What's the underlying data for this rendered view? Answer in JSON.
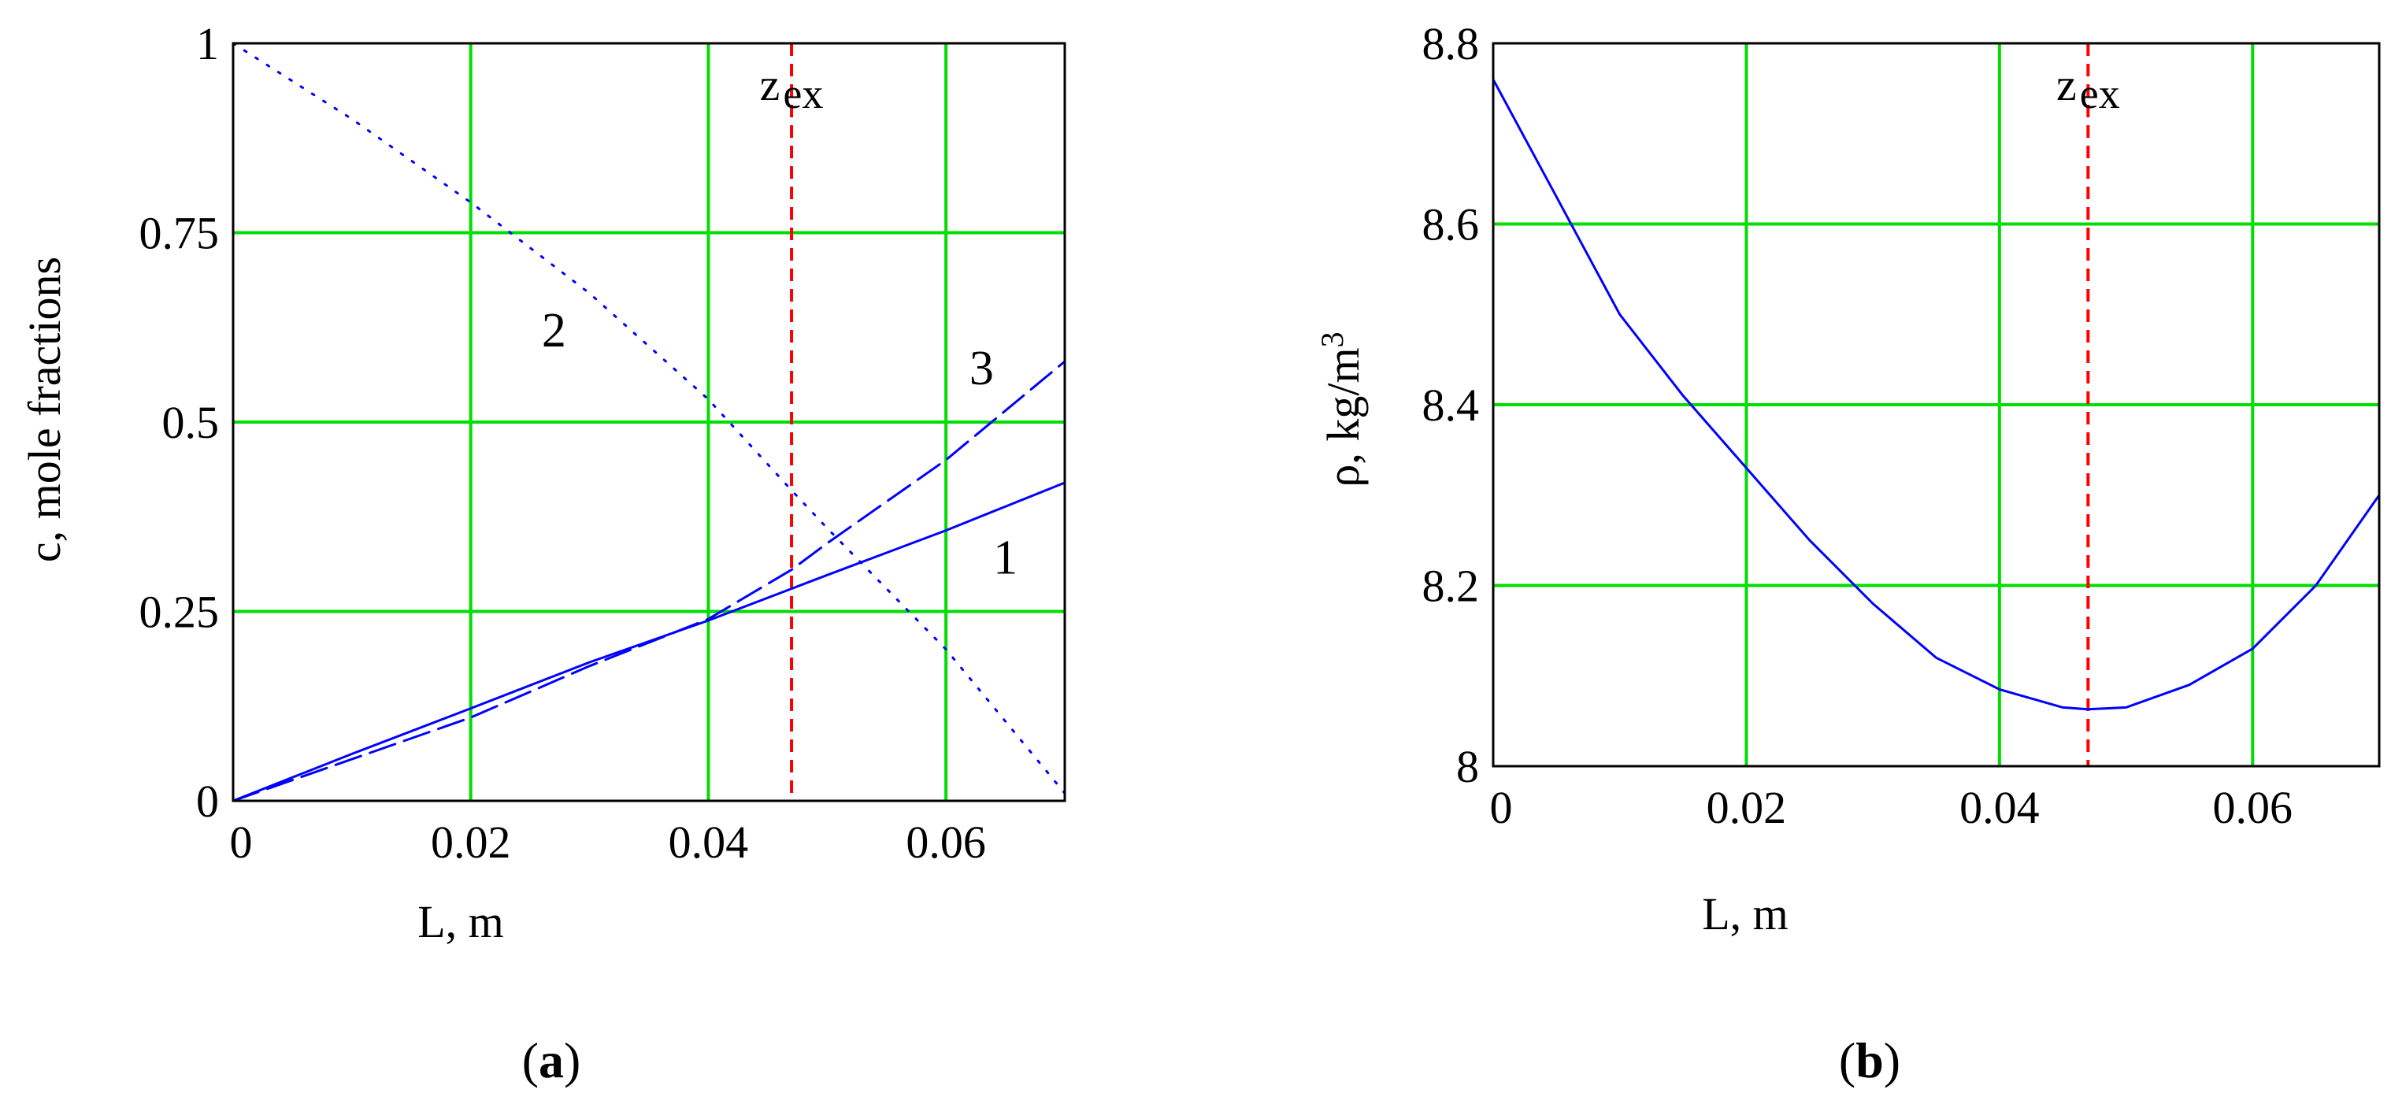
{
  "chart_data": [
    {
      "panel": "(a)",
      "panel_letter": "a",
      "type": "line",
      "xlabel": "L, m",
      "ylabel": "c, mole fractions",
      "xlim": [
        0,
        0.07
      ],
      "ylim": [
        0,
        1
      ],
      "xticks": [
        0,
        0.02,
        0.04,
        0.06
      ],
      "xtick_labels": [
        "0",
        "0.02",
        "0.04",
        "0.06"
      ],
      "yticks": [
        0,
        0.25,
        0.5,
        0.75,
        1
      ],
      "ytick_labels": [
        "0",
        "0.25",
        "0.5",
        "0.75",
        "1"
      ],
      "grid": true,
      "marker_line": {
        "x": 0.047,
        "label": "z",
        "sublabel": "ex",
        "color": "#ff0000"
      },
      "series": [
        {
          "name": "1",
          "style": "solid",
          "color": "#0000ff",
          "x": [
            0,
            0.01,
            0.02,
            0.03,
            0.04,
            0.047,
            0.05,
            0.06,
            0.07
          ],
          "y": [
            0,
            0.062,
            0.122,
            0.183,
            0.238,
            0.28,
            0.298,
            0.357,
            0.42
          ]
        },
        {
          "name": "2",
          "style": "dotted",
          "color": "#0000ff",
          "x": [
            0,
            0.01,
            0.02,
            0.03,
            0.04,
            0.047,
            0.05,
            0.06,
            0.07
          ],
          "y": [
            1,
            0.9,
            0.79,
            0.67,
            0.53,
            0.41,
            0.36,
            0.2,
            0.01
          ]
        },
        {
          "name": "3",
          "style": "dashed",
          "color": "#0000ff",
          "x": [
            0,
            0.01,
            0.02,
            0.03,
            0.04,
            0.047,
            0.05,
            0.06,
            0.07
          ],
          "y": [
            0,
            0.055,
            0.11,
            0.178,
            0.24,
            0.305,
            0.34,
            0.45,
            0.58
          ]
        }
      ],
      "curve_labels": [
        {
          "text": "1",
          "x": 0.065,
          "y": 0.3
        },
        {
          "text": "2",
          "x": 0.027,
          "y": 0.6
        },
        {
          "text": "3",
          "x": 0.063,
          "y": 0.55
        }
      ]
    },
    {
      "panel": "(b)",
      "panel_letter": "b",
      "type": "line",
      "xlabel": "L, m",
      "ylabel": "ρ, kg/m",
      "ylabel_sup": "3",
      "xlim": [
        0,
        0.07
      ],
      "ylim": [
        8,
        8.8
      ],
      "xticks": [
        0,
        0.02,
        0.04,
        0.06
      ],
      "xtick_labels": [
        "0",
        "0.02",
        "0.04",
        "0.06"
      ],
      "yticks": [
        8,
        8.2,
        8.4,
        8.6,
        8.8
      ],
      "ytick_labels": [
        "8",
        "8.2",
        "8.4",
        "8.6",
        "8.8"
      ],
      "grid": true,
      "marker_line": {
        "x": 0.047,
        "label": "z",
        "sublabel": "ex",
        "color": "#ff0000"
      },
      "series": [
        {
          "style": "solid",
          "color": "#0000ff",
          "x": [
            0,
            0.005,
            0.01,
            0.015,
            0.02,
            0.025,
            0.03,
            0.035,
            0.04,
            0.045,
            0.047,
            0.05,
            0.055,
            0.06,
            0.065,
            0.07
          ],
          "y": [
            8.76,
            8.63,
            8.5,
            8.41,
            8.33,
            8.25,
            8.18,
            8.12,
            8.085,
            8.065,
            8.063,
            8.065,
            8.09,
            8.13,
            8.2,
            8.3
          ]
        }
      ]
    }
  ]
}
